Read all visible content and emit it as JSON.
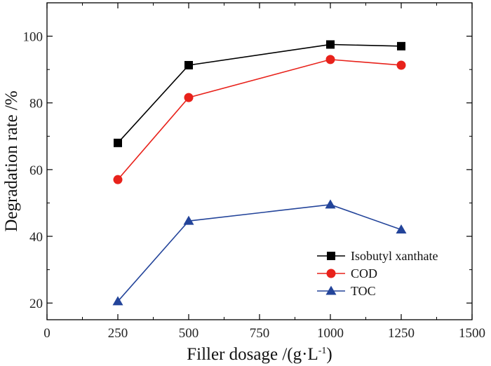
{
  "chart_data": {
    "type": "line",
    "title": "",
    "xlabel": "Filler dosage /(g·L",
    "xlabel_sup": "-1",
    "xlabel_end": ")",
    "ylabel": "Degradation rate /%",
    "xlim": [
      0,
      1500
    ],
    "ylim": [
      15,
      110
    ],
    "x_ticks": [
      0,
      250,
      500,
      750,
      1000,
      1250,
      1500
    ],
    "y_ticks": [
      20,
      40,
      60,
      80,
      100
    ],
    "x_tick_labels": [
      "0",
      "250",
      "500",
      "750",
      "1000",
      "1250",
      "1500"
    ],
    "y_tick_labels": [
      "20",
      "40",
      "60",
      "80",
      "100"
    ],
    "grid": false,
    "legend_position": "bottom-right",
    "x": [
      250,
      500,
      1000,
      1250
    ],
    "series": [
      {
        "name": "Isobutyl xanthate",
        "values": [
          68,
          91.3,
          97.5,
          97
        ],
        "color": "#000000",
        "marker": "square"
      },
      {
        "name": "COD",
        "values": [
          57,
          81.6,
          93,
          91.3
        ],
        "color": "#e8221b",
        "marker": "circle"
      },
      {
        "name": "TOC",
        "values": [
          20.5,
          44.6,
          49.5,
          42
        ],
        "color": "#23449a",
        "marker": "triangle"
      }
    ]
  }
}
